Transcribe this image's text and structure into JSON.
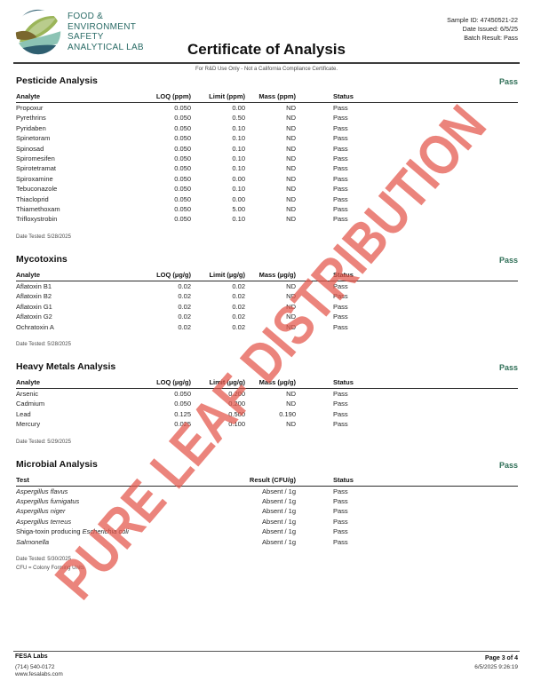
{
  "page": {
    "watermark_text": "PURE LEAF DISTRIBUTION",
    "watermark_color": "#e4564a",
    "accent_green": "#2e6e56",
    "logo_icon": "leaf-swirl-lab-logo"
  },
  "header": {
    "lab_name_lines": [
      "FOOD &",
      "ENVIRONMENT",
      "SAFETY",
      "ANALYTICAL LAB"
    ],
    "title": "Certificate of Analysis",
    "disclaimer": "For R&D Use Only - Not a California Compliance Certificate.",
    "meta_lines": [
      "Sample ID: 47450521-22",
      "Date Issued: 6/5/25",
      "Batch Result: Pass"
    ]
  },
  "sections": [
    {
      "title": "Pesticide Analysis",
      "status": "Pass",
      "columns": [
        "Analyte",
        "LOQ (ppm)",
        "Limit (ppm)",
        "Mass (ppm)",
        "Status"
      ],
      "rows": [
        {
          "analyte": "Propoxur",
          "loq": "0.050",
          "limit": "0.00",
          "mass": "ND",
          "status": "Pass"
        },
        {
          "analyte": "Pyrethrins",
          "loq": "0.050",
          "limit": "0.50",
          "mass": "ND",
          "status": "Pass"
        },
        {
          "analyte": "Pyridaben",
          "loq": "0.050",
          "limit": "0.10",
          "mass": "ND",
          "status": "Pass"
        },
        {
          "analyte": "Spinetoram",
          "loq": "0.050",
          "limit": "0.10",
          "mass": "ND",
          "status": "Pass"
        },
        {
          "analyte": "Spinosad",
          "loq": "0.050",
          "limit": "0.10",
          "mass": "ND",
          "status": "Pass"
        },
        {
          "analyte": "Spiromesifen",
          "loq": "0.050",
          "limit": "0.10",
          "mass": "ND",
          "status": "Pass"
        },
        {
          "analyte": "Spirotetramat",
          "loq": "0.050",
          "limit": "0.10",
          "mass": "ND",
          "status": "Pass"
        },
        {
          "analyte": "Spiroxamine",
          "loq": "0.050",
          "limit": "0.00",
          "mass": "ND",
          "status": "Pass"
        },
        {
          "analyte": "Tebuconazole",
          "loq": "0.050",
          "limit": "0.10",
          "mass": "ND",
          "status": "Pass"
        },
        {
          "analyte": "Thiacloprid",
          "loq": "0.050",
          "limit": "0.00",
          "mass": "ND",
          "status": "Pass"
        },
        {
          "analyte": "Thiamethoxam",
          "loq": "0.050",
          "limit": "5.00",
          "mass": "ND",
          "status": "Pass"
        },
        {
          "analyte": "Trifloxystrobin",
          "loq": "0.050",
          "limit": "0.10",
          "mass": "ND",
          "status": "Pass"
        }
      ],
      "date_tested": "Date Tested: 5/28/2025"
    },
    {
      "title": "Mycotoxins",
      "status": "Pass",
      "columns": [
        "Analyte",
        "LOQ (µg/g)",
        "Limit (µg/g)",
        "Mass (µg/g)",
        "Status"
      ],
      "rows": [
        {
          "analyte": "Aflatoxin B1",
          "loq": "0.02",
          "limit": "0.02",
          "mass": "ND",
          "status": "Pass"
        },
        {
          "analyte": "Aflatoxin B2",
          "loq": "0.02",
          "limit": "0.02",
          "mass": "ND",
          "status": "Pass"
        },
        {
          "analyte": "Aflatoxin G1",
          "loq": "0.02",
          "limit": "0.02",
          "mass": "ND",
          "status": "Pass"
        },
        {
          "analyte": "Aflatoxin G2",
          "loq": "0.02",
          "limit": "0.02",
          "mass": "ND",
          "status": "Pass"
        },
        {
          "analyte": "Ochratoxin A",
          "loq": "0.02",
          "limit": "0.02",
          "mass": "ND",
          "status": "Pass"
        }
      ],
      "date_tested": "Date Tested: 5/28/2025"
    },
    {
      "title": "Heavy Metals Analysis",
      "status": "Pass",
      "columns": [
        "Analyte",
        "LOQ (µg/g)",
        "Limit (µg/g)",
        "Mass (µg/g)",
        "Status"
      ],
      "rows": [
        {
          "analyte": "Arsenic",
          "loq": "0.050",
          "limit": "0.200",
          "mass": "ND",
          "status": "Pass"
        },
        {
          "analyte": "Cadmium",
          "loq": "0.050",
          "limit": "0.200",
          "mass": "ND",
          "status": "Pass"
        },
        {
          "analyte": "Lead",
          "loq": "0.125",
          "limit": "0.500",
          "mass": "0.190",
          "status": "Pass"
        },
        {
          "analyte": "Mercury",
          "loq": "0.025",
          "limit": "0.100",
          "mass": "ND",
          "status": "Pass"
        }
      ],
      "date_tested": "Date Tested: 5/29/2025"
    },
    {
      "title": "Microbial Analysis",
      "status": "Pass",
      "columns": [
        "Test",
        "Result (CFU/g)",
        "Status"
      ],
      "rows": [
        {
          "test": [
            {
              "text": "Aspergillus flavus",
              "italic": true
            }
          ],
          "result": "Absent / 1g",
          "status": "Pass"
        },
        {
          "test": [
            {
              "text": "Aspergillus fumigatus",
              "italic": true
            }
          ],
          "result": "Absent / 1g",
          "status": "Pass"
        },
        {
          "test": [
            {
              "text": "Aspergillus niger",
              "italic": true
            }
          ],
          "result": "Absent / 1g",
          "status": "Pass"
        },
        {
          "test": [
            {
              "text": "Aspergillus terreus",
              "italic": true
            }
          ],
          "result": "Absent / 1g",
          "status": "Pass"
        },
        {
          "test": [
            {
              "text": "Shiga-toxin producing ",
              "italic": false
            },
            {
              "text": "Escherichia coli",
              "italic": true
            }
          ],
          "result": "Absent / 1g",
          "status": "Pass"
        },
        {
          "test": [
            {
              "text": "Salmonella",
              "italic": true
            }
          ],
          "result": "Absent / 1g",
          "status": "Pass"
        }
      ],
      "date_tested": "Date Tested: 5/30/2025",
      "footnote": "CFU = Colony Forming Units"
    }
  ],
  "footer": {
    "lab": "FESA Labs",
    "phone": "(714) 540-0172",
    "website": "www.fesalabs.com",
    "page": "Page 3 of 4",
    "printed": "6/5/2025 9:26:19"
  }
}
